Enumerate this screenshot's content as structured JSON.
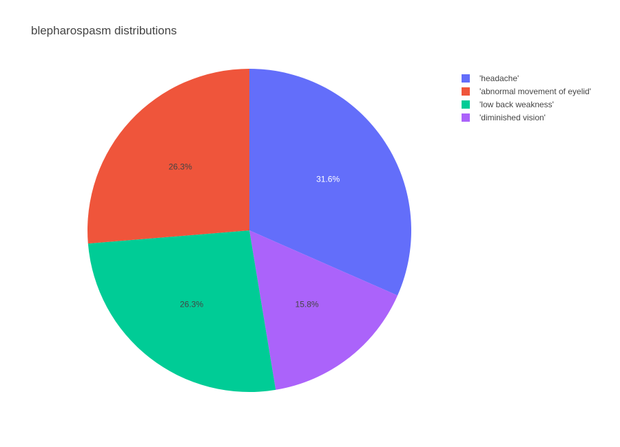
{
  "chart_data": {
    "type": "pie",
    "title": "blepharospasm distributions",
    "labels": [
      "'headache'",
      "'abnormal movement of eyelid'",
      "'low back weakness'",
      "'diminished vision'"
    ],
    "values": [
      31.6,
      26.3,
      26.3,
      15.8
    ],
    "value_labels": [
      "31.6%",
      "26.3%",
      "26.3%",
      "15.8%"
    ],
    "colors": [
      "#636efa",
      "#EF553B",
      "#00cc96",
      "#ab63fa"
    ],
    "slice_order": [
      0,
      3,
      2,
      1
    ],
    "label_colors": [
      "#ffffff",
      "#444444",
      "#444444",
      "#444444"
    ],
    "legend_position": "top-right"
  }
}
